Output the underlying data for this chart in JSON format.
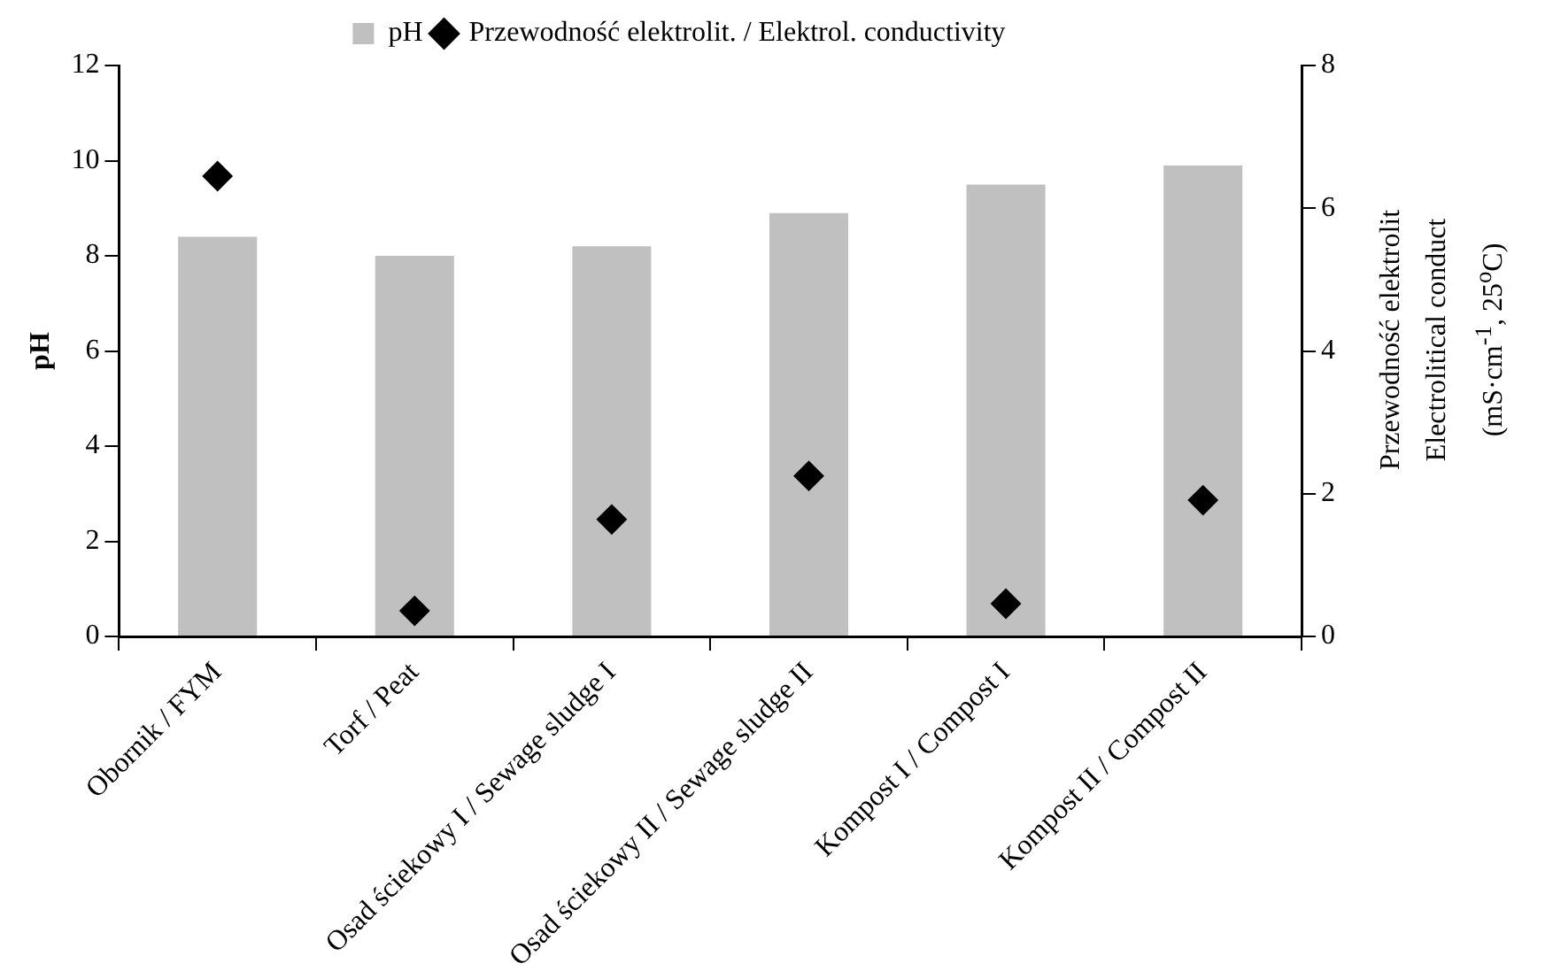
{
  "chart_data": {
    "type": "bar",
    "categories": [
      "Obornik / FYM",
      "Torf / Peat",
      "Osad ściekowy I / Sewage sludge I",
      "Osad ściekowy II / Sewage sludge II",
      "Kompost I / Compost I",
      "Kompost II / Compost II"
    ],
    "series": [
      {
        "name": "pH",
        "color": "#c0c0c0",
        "values": [
          8.4,
          8.0,
          8.2,
          8.9,
          9.5,
          9.9
        ]
      },
      {
        "name": "Przewodność elektrolit. / Elektrol. conductivity",
        "type": "scatter",
        "axis": "y2",
        "color": "#000000",
        "values": [
          6.45,
          0.36,
          1.64,
          2.25,
          0.46,
          1.91
        ]
      }
    ],
    "ylabel": "pH",
    "y2label": "Przewodność elektrolit\nElectrolitical conduct\n(mS·cm$^{-1}$, 25$^{o}$C)",
    "ylim": [
      0,
      12
    ],
    "yticks": [
      0,
      2,
      4,
      6,
      8,
      10,
      12
    ],
    "y2lim": [
      0,
      8
    ],
    "y2ticks": [
      0,
      2,
      4,
      6,
      8
    ],
    "grid": false,
    "legend": "top",
    "marker": "diamond"
  }
}
